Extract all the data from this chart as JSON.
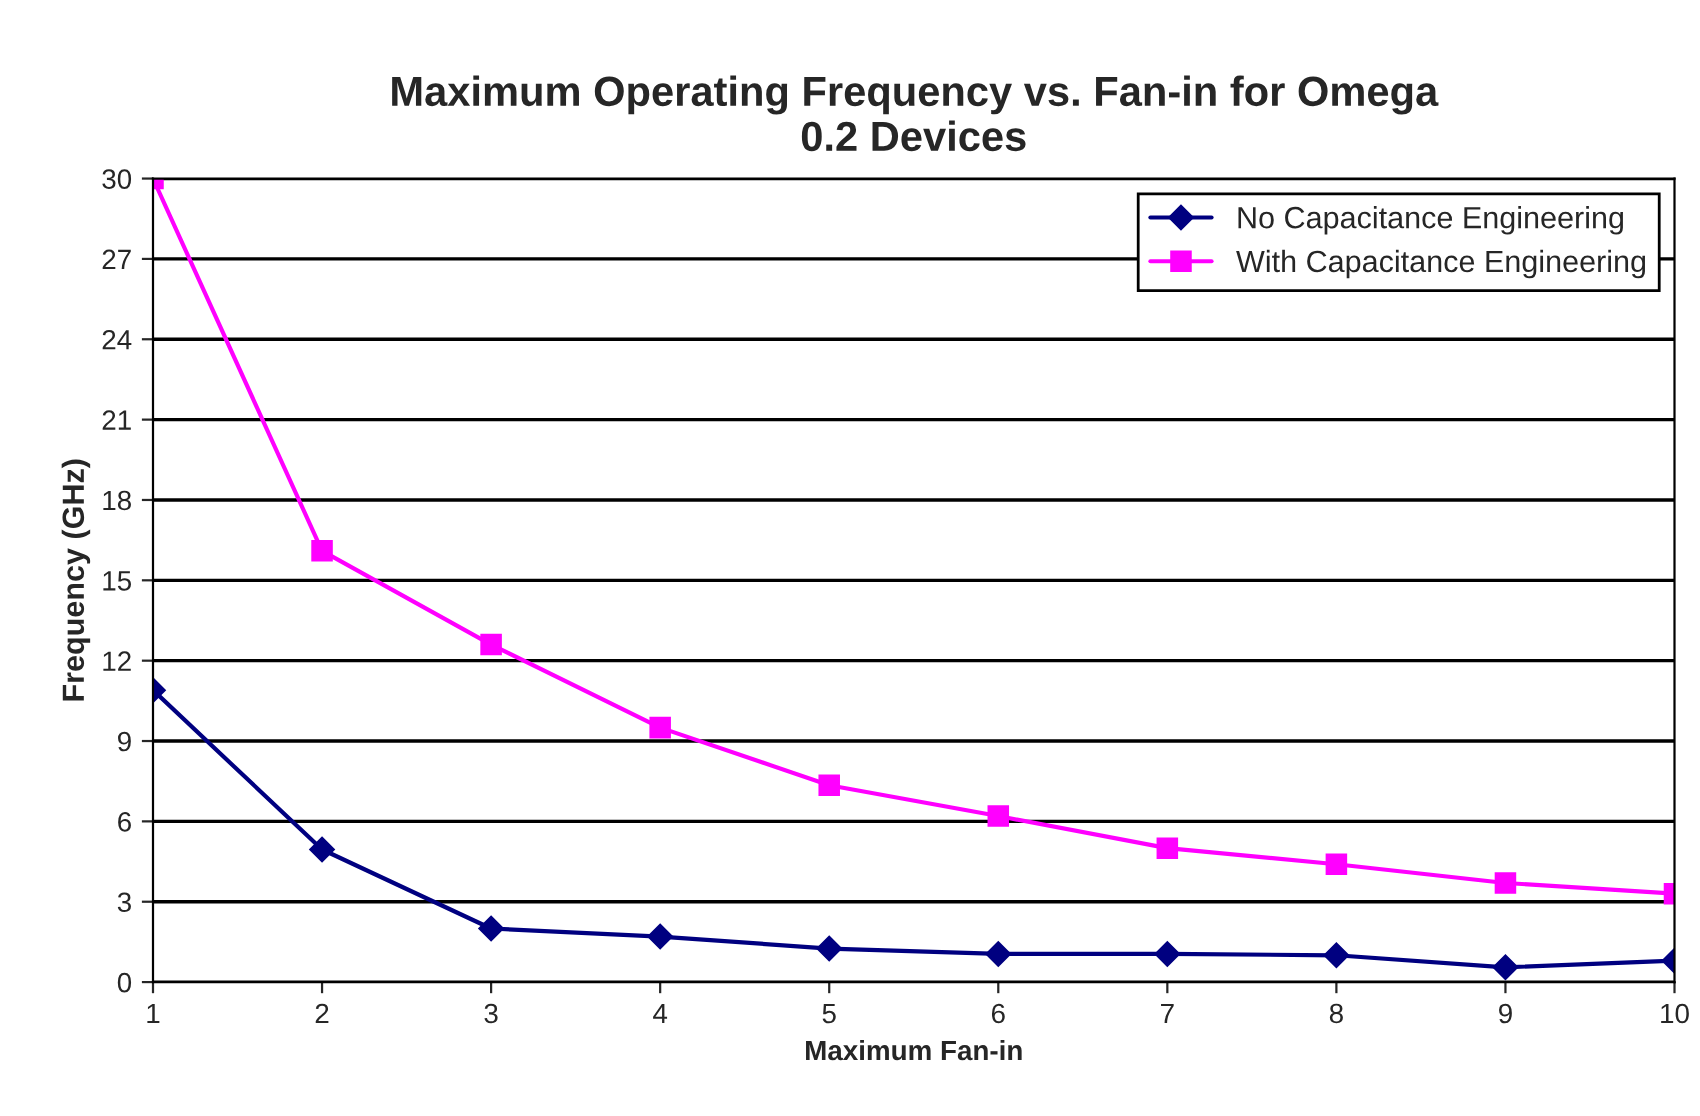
{
  "chart_data": {
    "type": "line",
    "title": "Maximum Operating Frequency vs. Fan-in for Omega\n0.2 Devices",
    "xlabel": "Maximum Fan-in",
    "ylabel": "Frequency (GHz)",
    "x": [
      1,
      2,
      3,
      4,
      5,
      6,
      7,
      8,
      9,
      10
    ],
    "series": [
      {
        "name": "No Capacitance Engineering",
        "color": "#000080",
        "marker": "diamond",
        "values": [
          10.9,
          4.95,
          2.0,
          1.7,
          1.25,
          1.05,
          1.05,
          1.0,
          0.55,
          0.8
        ]
      },
      {
        "name": "With Capacitance Engineering",
        "color": "#ff00ff",
        "marker": "square",
        "values": [
          30.0,
          16.1,
          12.6,
          9.5,
          7.35,
          6.2,
          5.0,
          4.4,
          3.7,
          3.3
        ]
      }
    ],
    "xlim": [
      1,
      10
    ],
    "xticks": [
      1,
      2,
      3,
      4,
      5,
      6,
      7,
      8,
      9,
      10
    ],
    "ylim": [
      0,
      30
    ],
    "yticks": [
      0,
      3,
      6,
      9,
      12,
      15,
      18,
      21,
      24,
      27,
      30
    ],
    "grid": "y",
    "legend": "top right",
    "line_style": "solid"
  }
}
